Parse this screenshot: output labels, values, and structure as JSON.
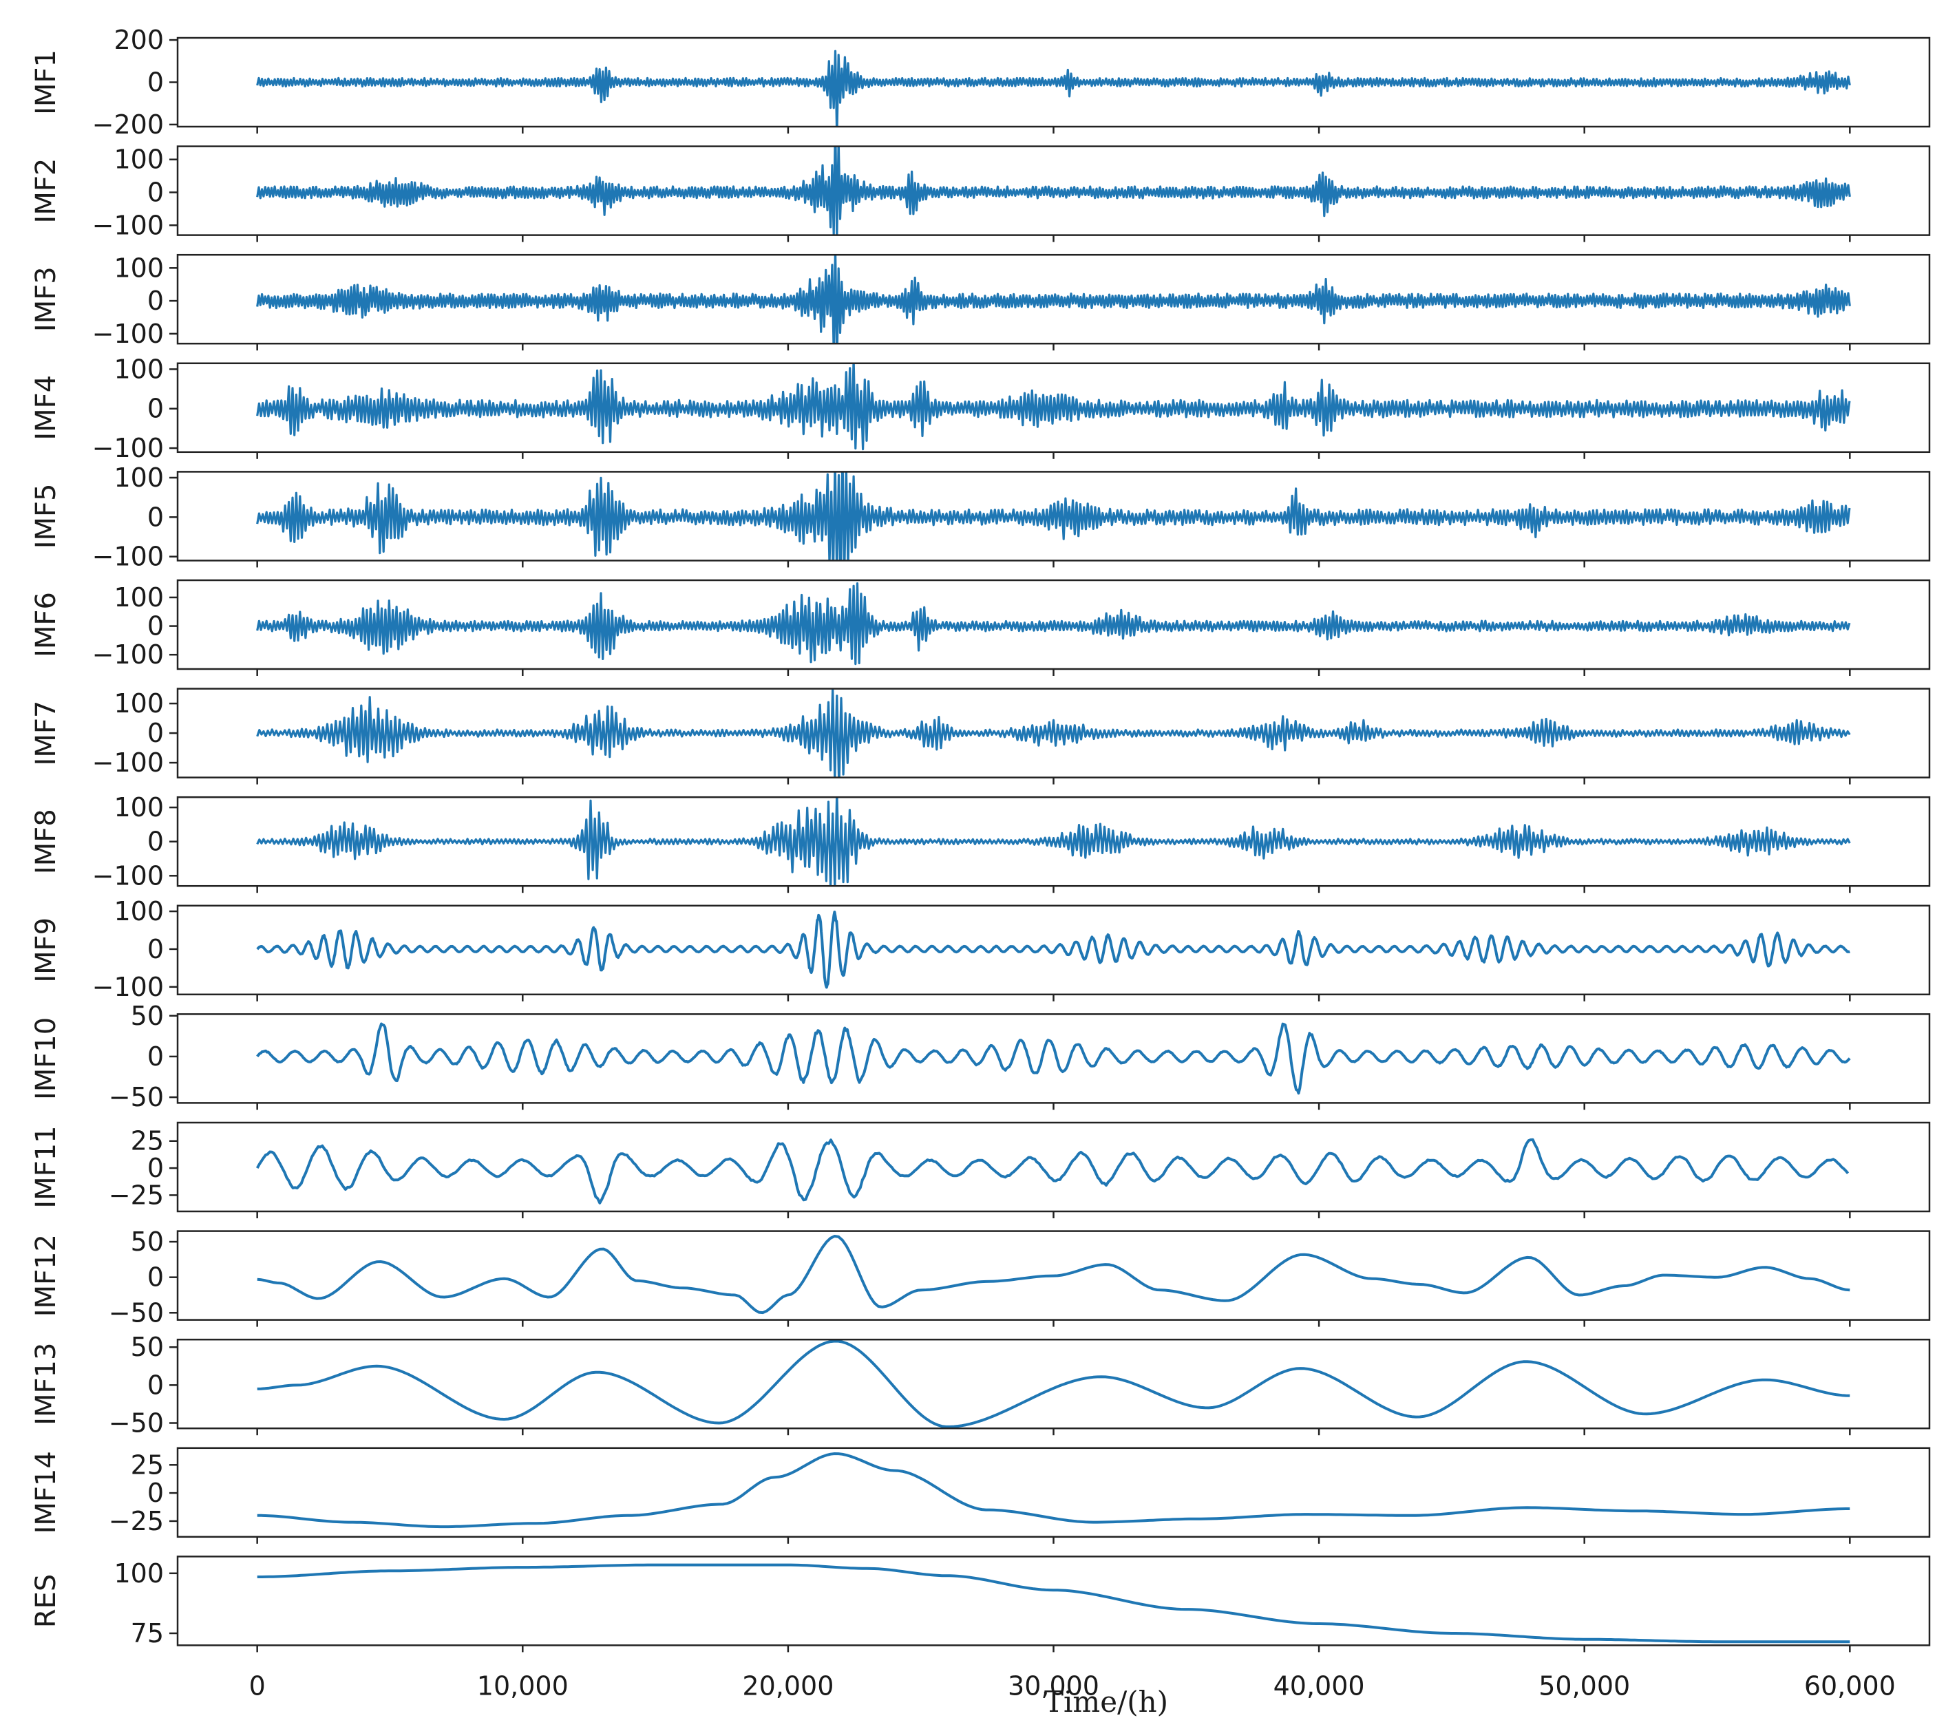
{
  "chart_data": {
    "type": "line",
    "line_color": "#1f77b4",
    "xlabel": "Time/(h)",
    "xlim": [
      -3000,
      63000
    ],
    "x_ticks": [
      0,
      10000,
      20000,
      30000,
      40000,
      50000,
      60000
    ],
    "x_tick_labels": [
      "0",
      "10,000",
      "20,000",
      "30,000",
      "40,000",
      "50,000",
      "60,000"
    ],
    "panels": [
      {
        "name": "IMF1",
        "kind": "noise",
        "ylim": [
          -210,
          210
        ],
        "yticks": [
          -200,
          0,
          200
        ],
        "ytick_labels": [
          "−200",
          "0",
          "200"
        ],
        "base_amp": 20,
        "sample_step": 60,
        "bursts": [
          [
            13000,
            300,
            85
          ],
          [
            21800,
            250,
            200
          ],
          [
            22100,
            600,
            70
          ],
          [
            30600,
            200,
            55
          ],
          [
            40200,
            300,
            55
          ],
          [
            59000,
            800,
            35
          ]
        ]
      },
      {
        "name": "IMF2",
        "kind": "noise",
        "ylim": [
          -130,
          140
        ],
        "yticks": [
          -100,
          0,
          100
        ],
        "ytick_labels": [
          "−100",
          "0",
          "100"
        ],
        "base_amp": 18,
        "sample_step": 60,
        "bursts": [
          [
            5200,
            900,
            35
          ],
          [
            13000,
            500,
            55
          ],
          [
            21700,
            900,
            80
          ],
          [
            21800,
            150,
            130
          ],
          [
            24700,
            300,
            55
          ],
          [
            40200,
            400,
            55
          ],
          [
            59000,
            800,
            30
          ]
        ]
      },
      {
        "name": "IMF3",
        "kind": "noise",
        "ylim": [
          -130,
          140
        ],
        "yticks": [
          -100,
          0,
          100
        ],
        "ytick_labels": [
          "−100",
          "0",
          "100"
        ],
        "base_amp": 22,
        "sample_step": 60,
        "bursts": [
          [
            4000,
            1200,
            30
          ],
          [
            13000,
            500,
            55
          ],
          [
            21500,
            900,
            80
          ],
          [
            21800,
            150,
            130
          ],
          [
            24700,
            300,
            55
          ],
          [
            40200,
            400,
            50
          ],
          [
            59000,
            800,
            30
          ]
        ]
      },
      {
        "name": "IMF4",
        "kind": "noise",
        "ylim": [
          -110,
          115
        ],
        "yticks": [
          -100,
          0,
          100
        ],
        "ytick_labels": [
          "−100",
          "0",
          "100"
        ],
        "base_amp": 22,
        "sample_step": 70,
        "bursts": [
          [
            1400,
            300,
            60
          ],
          [
            4500,
            1300,
            35
          ],
          [
            13000,
            500,
            95
          ],
          [
            21000,
            1300,
            55
          ],
          [
            22600,
            500,
            95
          ],
          [
            25000,
            300,
            60
          ],
          [
            29500,
            1200,
            30
          ],
          [
            38600,
            300,
            55
          ],
          [
            40200,
            400,
            55
          ],
          [
            59300,
            700,
            40
          ]
        ]
      },
      {
        "name": "IMF5",
        "kind": "noise",
        "ylim": [
          -110,
          115
        ],
        "yticks": [
          -100,
          0,
          100
        ],
        "ytick_labels": [
          "−100",
          "0",
          "100"
        ],
        "base_amp": 20,
        "sample_step": 70,
        "bursts": [
          [
            1400,
            400,
            55
          ],
          [
            4800,
            700,
            80
          ],
          [
            13000,
            600,
            95
          ],
          [
            21500,
            1400,
            75
          ],
          [
            22000,
            500,
            95
          ],
          [
            30600,
            800,
            40
          ],
          [
            39200,
            300,
            60
          ],
          [
            48000,
            400,
            40
          ],
          [
            59000,
            800,
            30
          ]
        ]
      },
      {
        "name": "IMF6",
        "kind": "noise",
        "ylim": [
          -150,
          160
        ],
        "yticks": [
          -100,
          0,
          100
        ],
        "ytick_labels": [
          "−100",
          "0",
          "100"
        ],
        "base_amp": 18,
        "sample_step": 70,
        "bursts": [
          [
            1500,
            400,
            45
          ],
          [
            4800,
            1100,
            90
          ],
          [
            13000,
            600,
            110
          ],
          [
            20800,
            1200,
            110
          ],
          [
            22600,
            500,
            120
          ],
          [
            25000,
            300,
            75
          ],
          [
            32500,
            800,
            45
          ],
          [
            40400,
            500,
            45
          ],
          [
            56000,
            900,
            25
          ]
        ]
      },
      {
        "name": "IMF7",
        "kind": "noise",
        "ylim": [
          -150,
          150
        ],
        "yticks": [
          -100,
          0,
          100
        ],
        "ytick_labels": [
          "−100",
          "0",
          "100"
        ],
        "base_amp": 12,
        "sample_step": 80,
        "bursts": [
          [
            4200,
            1300,
            110
          ],
          [
            13000,
            900,
            90
          ],
          [
            21600,
            1200,
            110
          ],
          [
            21900,
            200,
            130
          ],
          [
            25500,
            600,
            50
          ],
          [
            30000,
            1200,
            40
          ],
          [
            38500,
            900,
            50
          ],
          [
            41500,
            600,
            35
          ],
          [
            48500,
            900,
            40
          ],
          [
            58000,
            900,
            35
          ]
        ]
      },
      {
        "name": "IMF8",
        "kind": "noise",
        "ylim": [
          -130,
          130
        ],
        "yticks": [
          -100,
          0,
          100
        ],
        "ytick_labels": [
          "−100",
          "0",
          "100"
        ],
        "base_amp": 8,
        "sample_step": 80,
        "bursts": [
          [
            3500,
            1100,
            60
          ],
          [
            12700,
            500,
            130
          ],
          [
            20500,
            1200,
            90
          ],
          [
            22000,
            700,
            120
          ],
          [
            31500,
            1200,
            50
          ],
          [
            38000,
            1000,
            45
          ],
          [
            47500,
            1200,
            45
          ],
          [
            56500,
            1200,
            40
          ]
        ]
      },
      {
        "name": "IMF9",
        "kind": "wave",
        "ylim": [
          -120,
          115
        ],
        "yticks": [
          -100,
          0,
          100
        ],
        "ytick_labels": [
          "−100",
          "0",
          "100"
        ],
        "period": 600,
        "base_amp": 8,
        "bursts": [
          [
            3300,
            1200,
            45
          ],
          [
            12800,
            700,
            55
          ],
          [
            21500,
            900,
            100
          ],
          [
            32000,
            1300,
            30
          ],
          [
            39300,
            800,
            40
          ],
          [
            46500,
            1400,
            30
          ],
          [
            57000,
            1000,
            40
          ]
        ]
      },
      {
        "name": "IMF10",
        "kind": "wave",
        "ylim": [
          -57,
          52
        ],
        "yticks": [
          -50,
          0,
          50
        ],
        "ytick_labels": [
          "−50",
          "0",
          "50"
        ],
        "period": 1100,
        "base_amp": 7,
        "bursts": [
          [
            4800,
            700,
            38
          ],
          [
            10500,
            2500,
            15
          ],
          [
            20500,
            1700,
            24
          ],
          [
            22500,
            1200,
            22
          ],
          [
            29500,
            2000,
            16
          ],
          [
            39000,
            900,
            42
          ],
          [
            48000,
            2500,
            8
          ],
          [
            56500,
            2000,
            9
          ]
        ]
      },
      {
        "name": "IMF11",
        "kind": "wave",
        "ylim": [
          -40,
          42
        ],
        "yticks": [
          -25,
          0,
          25
        ],
        "ytick_labels": [
          "−25",
          "0",
          "25"
        ],
        "period": 1900,
        "base_amp": 8,
        "bursts": [
          [
            2500,
            2500,
            14
          ],
          [
            13000,
            700,
            26
          ],
          [
            20500,
            1500,
            22
          ],
          [
            22500,
            900,
            16
          ],
          [
            32000,
            2500,
            8
          ],
          [
            40000,
            2500,
            7
          ],
          [
            47900,
            700,
            20
          ],
          [
            55000,
            3000,
            5
          ]
        ]
      },
      {
        "name": "IMF12",
        "kind": "points",
        "ylim": [
          -60,
          65
        ],
        "yticks": [
          -50,
          0,
          50
        ],
        "ytick_labels": [
          "−50",
          "0",
          "50"
        ],
        "x": [
          0,
          800,
          2300,
          4600,
          7000,
          9300,
          11000,
          13000,
          14300,
          16000,
          18000,
          19000,
          20000,
          21800,
          23500,
          25000,
          27500,
          30000,
          32000,
          34000,
          36500,
          39400,
          42000,
          43800,
          45500,
          47900,
          49800,
          51500,
          53000,
          55000,
          56800,
          58500,
          60000
        ],
        "y": [
          -3,
          -8,
          -30,
          22,
          -28,
          -2,
          -28,
          40,
          -5,
          -15,
          -25,
          -50,
          -25,
          58,
          -42,
          -18,
          -6,
          2,
          18,
          -18,
          -33,
          32,
          -2,
          -10,
          -22,
          28,
          -25,
          -12,
          3,
          0,
          14,
          -2,
          -18
        ]
      },
      {
        "name": "IMF13",
        "kind": "points",
        "ylim": [
          -57,
          60
        ],
        "yticks": [
          -50,
          0,
          50
        ],
        "ytick_labels": [
          "−50",
          "0",
          "50"
        ],
        "x": [
          0,
          1500,
          4500,
          9300,
          12800,
          17400,
          21800,
          26000,
          31800,
          35800,
          39300,
          43700,
          47800,
          52300,
          56800,
          60000
        ],
        "y": [
          -5,
          0,
          25,
          -45,
          17,
          -50,
          58,
          -55,
          11,
          -30,
          22,
          -42,
          31,
          -38,
          7,
          -14
        ]
      },
      {
        "name": "IMF14",
        "kind": "points",
        "ylim": [
          -39,
          40
        ],
        "yticks": [
          -25,
          0,
          25
        ],
        "ytick_labels": [
          "−25",
          "0",
          "25"
        ],
        "x": [
          0,
          3500,
          7000,
          10500,
          14000,
          17500,
          19500,
          21800,
          24000,
          27500,
          31500,
          35500,
          39500,
          43500,
          47800,
          52000,
          56000,
          60000
        ],
        "y": [
          -20,
          -26,
          -30,
          -27,
          -20,
          -10,
          14,
          35,
          20,
          -15,
          -26,
          -23,
          -19,
          -20,
          -13,
          -16,
          -19,
          -14
        ]
      },
      {
        "name": "RES",
        "kind": "points",
        "ylim": [
          70,
          107
        ],
        "yticks": [
          75,
          100
        ],
        "ytick_labels": [
          "75",
          "100"
        ],
        "x": [
          0,
          5000,
          10000,
          15000,
          20000,
          23000,
          26000,
          30000,
          35000,
          40000,
          45000,
          50000,
          55000,
          60000
        ],
        "y": [
          98.5,
          101,
          102.5,
          103.5,
          103.5,
          102,
          99,
          93,
          85,
          79,
          75,
          72.5,
          71.5,
          71.5
        ]
      }
    ]
  }
}
